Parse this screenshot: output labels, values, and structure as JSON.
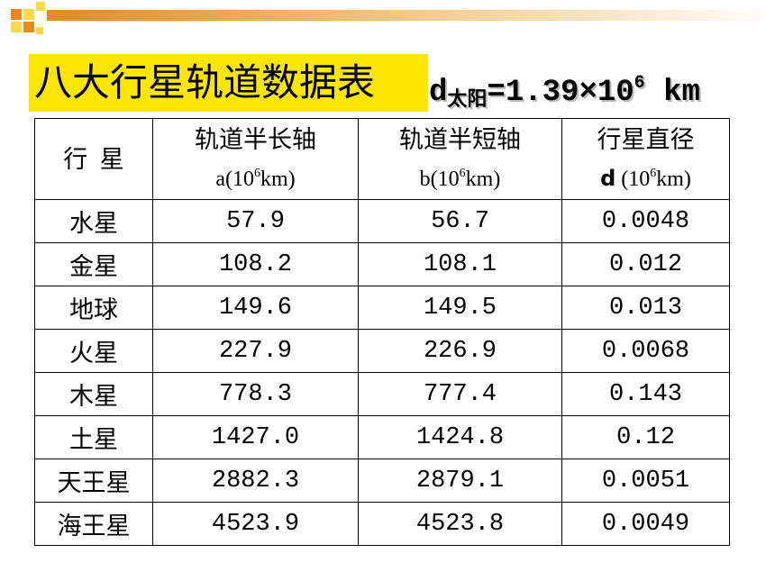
{
  "title": {
    "text": "八大行星轨道数据表",
    "formula": {
      "d": "d",
      "sub": "太阳",
      "eq": "=1.39×10",
      "sup": "6",
      "unit": " km"
    }
  },
  "table": {
    "header": [
      {
        "line1": "行  星"
      },
      {
        "line1": "轨道半长轴",
        "line2": {
          "pre": "a(10",
          "sup": "6",
          "post": "km)"
        }
      },
      {
        "line1": "轨道半短轴",
        "line2": {
          "pre": "b(10",
          "sup": "6",
          "post": "km)"
        }
      },
      {
        "line1": "行星直径",
        "line2": {
          "bold": "d",
          "pre": " (10",
          "sup": "6",
          "post": "km)"
        }
      }
    ],
    "rows": [
      [
        "水星",
        "57.9",
        "56.7",
        "0.0048"
      ],
      [
        "金星",
        "108.2",
        "108.1",
        "0.012"
      ],
      [
        "地球",
        "149.6",
        "149.5",
        "0.013"
      ],
      [
        "火星",
        "227.9",
        "226.9",
        "0.0068"
      ],
      [
        "木星",
        "778.3",
        "777.4",
        "0.143"
      ],
      [
        "土星",
        "1427.0",
        "1424.8",
        "0.12"
      ],
      [
        "天王星",
        "2882.3",
        "2879.1",
        "0.0051"
      ],
      [
        "海王星",
        "4523.9",
        "4523.8",
        "0.0049"
      ]
    ]
  }
}
